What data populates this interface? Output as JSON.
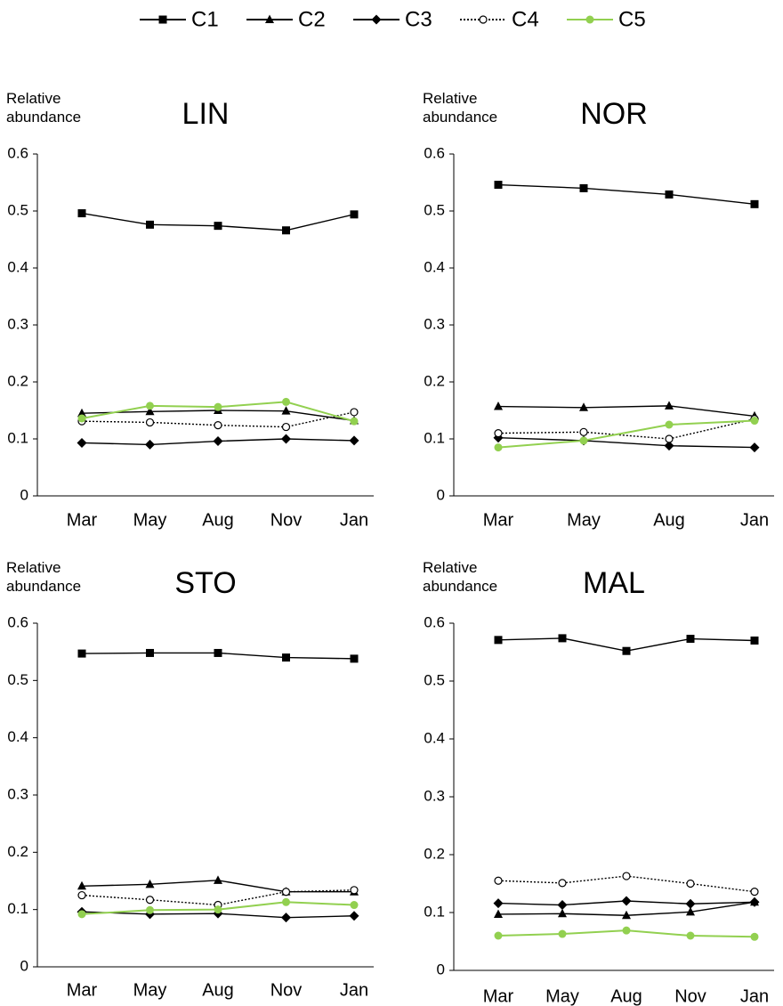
{
  "chart_data": [
    {
      "type": "line",
      "title": "LIN",
      "y_label": "Relative abundance",
      "categories": [
        "Mar",
        "May",
        "Aug",
        "Nov",
        "Jan"
      ],
      "ylim": [
        0,
        0.6
      ],
      "yticks": [
        0,
        0.1,
        0.2,
        0.3,
        0.4,
        0.5,
        0.6
      ],
      "grid": false,
      "series": [
        {
          "name": "C1",
          "color": "#000000",
          "marker": "square",
          "line_style": "solid",
          "values": [
            0.496,
            0.476,
            0.474,
            0.466,
            0.494
          ]
        },
        {
          "name": "C2",
          "color": "#000000",
          "marker": "triangle",
          "line_style": "solid",
          "values": [
            0.145,
            0.148,
            0.15,
            0.149,
            0.132
          ]
        },
        {
          "name": "C3",
          "color": "#000000",
          "marker": "diamond",
          "line_style": "solid",
          "values": [
            0.093,
            0.09,
            0.096,
            0.1,
            0.097
          ]
        },
        {
          "name": "C4",
          "color": "#000000",
          "marker": "open-circle",
          "line_style": "dotted",
          "values": [
            0.131,
            0.129,
            0.124,
            0.121,
            0.147
          ]
        },
        {
          "name": "C5",
          "color": "#92d050",
          "marker": "circle",
          "line_style": "solid",
          "values": [
            0.136,
            0.158,
            0.156,
            0.165,
            0.131
          ]
        }
      ]
    },
    {
      "type": "line",
      "title": "NOR",
      "y_label": "Relative abundance",
      "categories": [
        "Mar",
        "May",
        "Aug",
        "Jan"
      ],
      "ylim": [
        0,
        0.6
      ],
      "yticks": [
        0,
        0.1,
        0.2,
        0.3,
        0.4,
        0.5,
        0.6
      ],
      "grid": false,
      "series": [
        {
          "name": "C1",
          "color": "#000000",
          "marker": "square",
          "line_style": "solid",
          "values": [
            0.546,
            0.54,
            0.529,
            0.512
          ]
        },
        {
          "name": "C2",
          "color": "#000000",
          "marker": "triangle",
          "line_style": "solid",
          "values": [
            0.157,
            0.155,
            0.158,
            0.14
          ]
        },
        {
          "name": "C3",
          "color": "#000000",
          "marker": "diamond",
          "line_style": "solid",
          "values": [
            0.102,
            0.097,
            0.088,
            0.085
          ]
        },
        {
          "name": "C4",
          "color": "#000000",
          "marker": "open-circle",
          "line_style": "dotted",
          "values": [
            0.11,
            0.112,
            0.1,
            0.135
          ]
        },
        {
          "name": "C5",
          "color": "#92d050",
          "marker": "circle",
          "line_style": "solid",
          "values": [
            0.085,
            0.097,
            0.125,
            0.132
          ]
        }
      ]
    },
    {
      "type": "line",
      "title": "STO",
      "y_label": "Relative abundance",
      "categories": [
        "Mar",
        "May",
        "Aug",
        "Nov",
        "Jan"
      ],
      "ylim": [
        0,
        0.6
      ],
      "yticks": [
        0,
        0.1,
        0.2,
        0.3,
        0.4,
        0.5,
        0.6
      ],
      "grid": false,
      "series": [
        {
          "name": "C1",
          "color": "#000000",
          "marker": "square",
          "line_style": "solid",
          "values": [
            0.547,
            0.548,
            0.548,
            0.54,
            0.538
          ]
        },
        {
          "name": "C2",
          "color": "#000000",
          "marker": "triangle",
          "line_style": "solid",
          "values": [
            0.141,
            0.144,
            0.151,
            0.131,
            0.131
          ]
        },
        {
          "name": "C3",
          "color": "#000000",
          "marker": "diamond",
          "line_style": "solid",
          "values": [
            0.096,
            0.092,
            0.093,
            0.086,
            0.089
          ]
        },
        {
          "name": "C4",
          "color": "#000000",
          "marker": "open-circle",
          "line_style": "dotted",
          "values": [
            0.125,
            0.117,
            0.108,
            0.131,
            0.134
          ]
        },
        {
          "name": "C5",
          "color": "#92d050",
          "marker": "circle",
          "line_style": "solid",
          "values": [
            0.092,
            0.099,
            0.1,
            0.113,
            0.108
          ]
        }
      ]
    },
    {
      "type": "line",
      "title": "MAL",
      "y_label": "Relative abundance",
      "categories": [
        "Mar",
        "May",
        "Aug",
        "Nov",
        "Jan"
      ],
      "ylim": [
        0,
        0.6
      ],
      "yticks": [
        0,
        0.1,
        0.2,
        0.3,
        0.4,
        0.5,
        0.6
      ],
      "grid": false,
      "series": [
        {
          "name": "C1",
          "color": "#000000",
          "marker": "square",
          "line_style": "solid",
          "values": [
            0.571,
            0.574,
            0.552,
            0.573,
            0.57
          ]
        },
        {
          "name": "C2",
          "color": "#000000",
          "marker": "triangle",
          "line_style": "solid",
          "values": [
            0.097,
            0.098,
            0.095,
            0.101,
            0.118
          ]
        },
        {
          "name": "C3",
          "color": "#000000",
          "marker": "diamond",
          "line_style": "solid",
          "values": [
            0.116,
            0.113,
            0.12,
            0.115,
            0.118
          ]
        },
        {
          "name": "C4",
          "color": "#000000",
          "marker": "open-circle",
          "line_style": "dotted",
          "values": [
            0.155,
            0.151,
            0.163,
            0.15,
            0.136
          ]
        },
        {
          "name": "C5",
          "color": "#92d050",
          "marker": "circle",
          "line_style": "solid",
          "values": [
            0.06,
            0.063,
            0.069,
            0.06,
            0.058
          ]
        }
      ]
    }
  ]
}
